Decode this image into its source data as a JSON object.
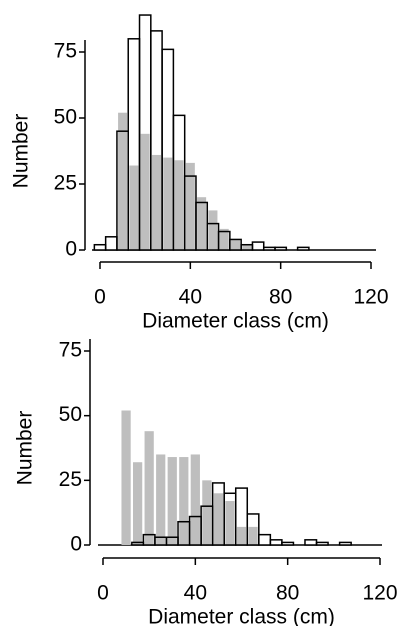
{
  "chart_data": [
    {
      "type": "histogram",
      "xlabel": "Diameter class (cm)",
      "ylabel": "Number",
      "bins": [
        -2.5,
        2.5,
        7.5,
        12.5,
        17.5,
        22.5,
        27.5,
        32.5,
        37.5,
        42.5,
        47.5,
        52.5,
        57.5,
        62.5,
        67.5,
        72.5,
        77.5,
        82.5,
        87.5,
        92.5,
        97.5,
        102.5,
        107.5
      ],
      "series": [
        {
          "color": "#ffffff",
          "values": [
            2,
            5,
            45,
            80,
            89,
            83,
            76,
            51,
            28,
            18,
            10,
            7,
            4,
            2,
            3,
            1,
            1,
            0,
            1,
            0,
            0,
            0
          ]
        },
        {
          "color": "#bebebe",
          "values": [
            0,
            0,
            52,
            32,
            44,
            36,
            35,
            34,
            33,
            20,
            15,
            8,
            4,
            2,
            0,
            0,
            0,
            0,
            0,
            0,
            0,
            0
          ]
        }
      ],
      "xlim": [
        -3,
        122
      ],
      "xticks": [
        0,
        40,
        80,
        120
      ],
      "ylim": [
        0,
        92
      ],
      "yticks": [
        0,
        25,
        50,
        75
      ]
    },
    {
      "type": "histogram",
      "xlabel": "Diameter class (cm)",
      "ylabel": "Number",
      "bins": [
        -2.5,
        2.5,
        7.5,
        12.5,
        17.5,
        22.5,
        27.5,
        32.5,
        37.5,
        42.5,
        47.5,
        52.5,
        57.5,
        62.5,
        67.5,
        72.5,
        77.5,
        82.5,
        87.5,
        92.5,
        97.5,
        102.5,
        107.5
      ],
      "series": [
        {
          "color": "#ffffff",
          "values": [
            0,
            0,
            0,
            1,
            4,
            3,
            3,
            9,
            11,
            15,
            24,
            20,
            22,
            12,
            4,
            2,
            1,
            0,
            2,
            1,
            0,
            1
          ]
        },
        {
          "color": "#bebebe",
          "values": [
            0,
            0,
            52,
            32,
            44,
            35,
            34,
            34,
            35,
            25,
            20,
            17,
            7,
            7,
            0,
            0,
            0,
            0,
            0,
            0,
            0,
            0
          ]
        }
      ],
      "xlim": [
        -3,
        122
      ],
      "xticks": [
        0,
        40,
        80,
        120
      ],
      "ylim": [
        0,
        92
      ],
      "yticks": [
        0,
        25,
        50,
        75
      ]
    }
  ]
}
